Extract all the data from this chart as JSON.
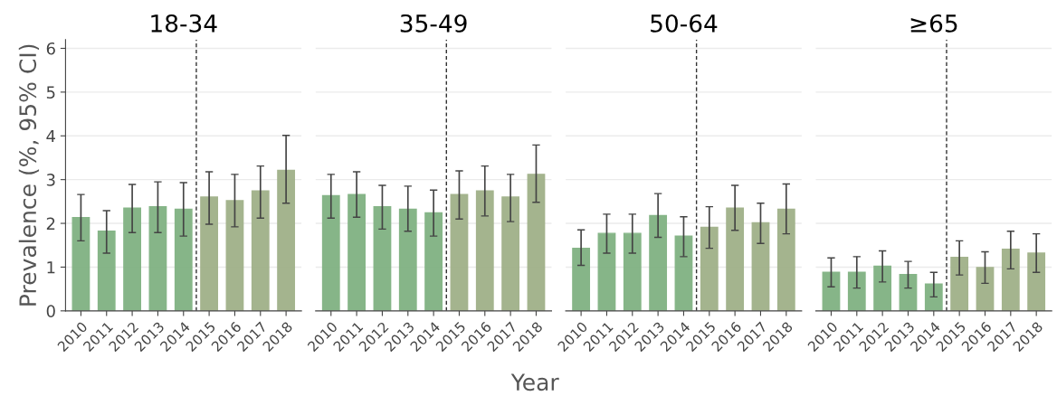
{
  "chart_data": [
    {
      "type": "bar",
      "title": "18-34",
      "ylabel": "Prevalence (%, 95% CI)",
      "x": [
        2010,
        2011,
        2012,
        2013,
        2014,
        2015,
        2016,
        2017,
        2018
      ],
      "values": [
        2.13,
        1.82,
        2.35,
        2.38,
        2.32,
        2.6,
        2.52,
        2.74,
        3.21
      ],
      "errors": [
        [
          1.6,
          2.66
        ],
        [
          1.32,
          2.29
        ],
        [
          1.79,
          2.89
        ],
        [
          1.79,
          2.95
        ],
        [
          1.71,
          2.93
        ],
        [
          1.98,
          3.18
        ],
        [
          1.92,
          3.12
        ],
        [
          2.12,
          3.31
        ],
        [
          2.46,
          4.01
        ]
      ],
      "colors": [
        "#80b282",
        "#80b282",
        "#80b282",
        "#80b282",
        "#80b282",
        "#a0b088",
        "#a0b088",
        "#a0b088",
        "#a0b088"
      ],
      "xlim": [
        2009.4,
        2018.6
      ],
      "xticks": [
        2010,
        2011,
        2012,
        2013,
        2014,
        2015,
        2016,
        2017,
        2018
      ],
      "ylim": [
        0,
        6.2
      ],
      "yticks": [
        0,
        1,
        2,
        3,
        4,
        5,
        6
      ],
      "grid": "y",
      "ref_lines": [
        {
          "axis": "x",
          "value": 2014.5,
          "color": "#333333",
          "line_style": "dashed"
        }
      ]
    },
    {
      "type": "bar",
      "title": "35-49",
      "xlabel": "Year",
      "x": [
        2010,
        2011,
        2012,
        2013,
        2014,
        2015,
        2016,
        2017,
        2018
      ],
      "values": [
        2.63,
        2.66,
        2.38,
        2.32,
        2.24,
        2.66,
        2.74,
        2.6,
        3.12
      ],
      "errors": [
        [
          2.12,
          3.12
        ],
        [
          2.14,
          3.18
        ],
        [
          1.87,
          2.87
        ],
        [
          1.82,
          2.85
        ],
        [
          1.71,
          2.76
        ],
        [
          2.1,
          3.2
        ],
        [
          2.17,
          3.31
        ],
        [
          2.04,
          3.12
        ],
        [
          2.48,
          3.79
        ]
      ],
      "colors": [
        "#80b282",
        "#80b282",
        "#80b282",
        "#80b282",
        "#80b282",
        "#a0b088",
        "#a0b088",
        "#a0b088",
        "#a0b088"
      ],
      "xlim": [
        2009.4,
        2018.6
      ],
      "xticks": [
        2010,
        2011,
        2012,
        2013,
        2014,
        2015,
        2016,
        2017,
        2018
      ],
      "ylim": [
        0,
        6.2
      ],
      "yticks": [
        0,
        1,
        2,
        3,
        4,
        5,
        6
      ],
      "grid": "y",
      "tick_labels": "x",
      "ref_lines": [
        {
          "axis": "x",
          "value": 2014.5,
          "color": "#333333",
          "line_style": "dashed"
        }
      ]
    },
    {
      "type": "bar",
      "title": "50-64",
      "x": [
        2010,
        2011,
        2012,
        2013,
        2014,
        2015,
        2016,
        2017,
        2018
      ],
      "values": [
        1.43,
        1.77,
        1.77,
        2.18,
        1.71,
        1.91,
        2.35,
        2.01,
        2.32
      ],
      "errors": [
        [
          1.04,
          1.85
        ],
        [
          1.32,
          2.21
        ],
        [
          1.32,
          2.21
        ],
        [
          1.68,
          2.68
        ],
        [
          1.24,
          2.15
        ],
        [
          1.43,
          2.38
        ],
        [
          1.84,
          2.87
        ],
        [
          1.54,
          2.46
        ],
        [
          1.76,
          2.9
        ]
      ],
      "colors": [
        "#80b282",
        "#80b282",
        "#80b282",
        "#80b282",
        "#80b282",
        "#a0b088",
        "#a0b088",
        "#a0b088",
        "#a0b088"
      ],
      "xlim": [
        2009.4,
        2018.6
      ],
      "xticks": [
        2010,
        2011,
        2012,
        2013,
        2014,
        2015,
        2016,
        2017,
        2018
      ],
      "ylim": [
        0,
        6.2
      ],
      "yticks": [
        0,
        1,
        2,
        3,
        4,
        5,
        6
      ],
      "grid": "y",
      "tick_labels": "x",
      "ref_lines": [
        {
          "axis": "x",
          "value": 2014.5,
          "color": "#333333",
          "line_style": "dashed"
        }
      ]
    },
    {
      "type": "bar",
      "title": "≥65",
      "x": [
        2010,
        2011,
        2012,
        2013,
        2014,
        2015,
        2016,
        2017,
        2018
      ],
      "values": [
        0.88,
        0.88,
        1.02,
        0.83,
        0.61,
        1.22,
        0.99,
        1.41,
        1.32
      ],
      "errors": [
        [
          0.55,
          1.21
        ],
        [
          0.52,
          1.24
        ],
        [
          0.66,
          1.37
        ],
        [
          0.52,
          1.13
        ],
        [
          0.32,
          0.88
        ],
        [
          0.82,
          1.6
        ],
        [
          0.63,
          1.35
        ],
        [
          0.96,
          1.82
        ],
        [
          0.88,
          1.76
        ]
      ],
      "colors": [
        "#80b282",
        "#80b282",
        "#80b282",
        "#80b282",
        "#80b282",
        "#a0b088",
        "#a0b088",
        "#a0b088",
        "#a0b088"
      ],
      "xlim": [
        2009.4,
        2018.6
      ],
      "xticks": [
        2010,
        2011,
        2012,
        2013,
        2014,
        2015,
        2016,
        2017,
        2018
      ],
      "ylim": [
        0,
        6.2
      ],
      "yticks": [
        0,
        1,
        2,
        3,
        4,
        5,
        6
      ],
      "grid": "y",
      "tick_labels": "x",
      "ref_lines": [
        {
          "axis": "x",
          "value": 2014.5,
          "color": "#333333",
          "line_style": "dashed"
        }
      ]
    }
  ]
}
